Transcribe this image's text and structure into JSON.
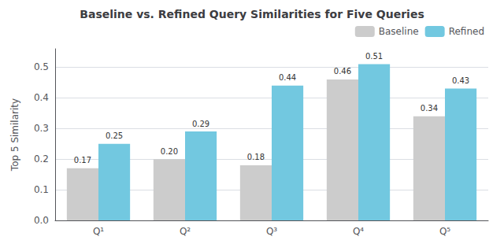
{
  "chart_data": {
    "type": "bar",
    "title": "Baseline vs. Refined Query Similarities for Five Queries",
    "ylabel": "Top 5 Similarity",
    "categories": [
      "Q¹",
      "Q²",
      "Q³",
      "Q⁴",
      "Q⁵"
    ],
    "series": [
      {
        "name": "Baseline",
        "color": "#cccccc",
        "values": [
          0.17,
          0.2,
          0.18,
          0.46,
          0.34
        ],
        "value_labels": [
          "0.17",
          "0.20",
          "0.18",
          "0.46",
          "0.34"
        ]
      },
      {
        "name": "Refined",
        "color": "#72c8e0",
        "values": [
          0.25,
          0.29,
          0.44,
          0.51,
          0.43
        ],
        "value_labels": [
          "0.25",
          "0.29",
          "0.44",
          "0.51",
          "0.43"
        ]
      }
    ],
    "ylim": [
      0.0,
      0.56
    ],
    "yticks": [
      {
        "value": 0,
        "label": "0.0"
      },
      0.1,
      0.2,
      0.3,
      0.4,
      0.5
    ],
    "grid": true,
    "legend": "upper right",
    "data_labels": true
  }
}
